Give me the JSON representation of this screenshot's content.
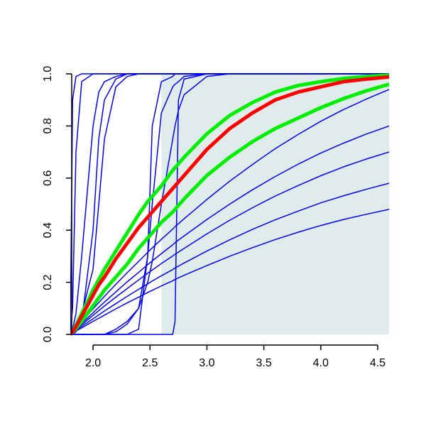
{
  "chart_data": {
    "type": "line",
    "xlim": [
      1.8,
      4.6
    ],
    "ylim": [
      0,
      1
    ],
    "xticks": [
      {
        "value": 2,
        "label": "2.0"
      },
      {
        "value": 2.5,
        "label": "2.5"
      },
      {
        "value": 3,
        "label": "3.0"
      },
      {
        "value": 3.5,
        "label": "3.5"
      },
      {
        "value": 4,
        "label": "4.0"
      },
      {
        "value": 4.5,
        "label": "4.5"
      }
    ],
    "yticks": [
      {
        "value": 0,
        "label": "0.0"
      },
      {
        "value": 0.2,
        "label": "0.2"
      },
      {
        "value": 0.4,
        "label": "0.4"
      },
      {
        "value": 0.6,
        "label": "0.6"
      },
      {
        "value": 0.8,
        "label": "0.8"
      },
      {
        "value": 1,
        "label": "1.0"
      }
    ],
    "shaded_region": {
      "xlim": [
        2.6,
        4.6
      ],
      "ylim": [
        0,
        1
      ],
      "color": "#e0ebeb"
    },
    "x": [
      1.8,
      1.82,
      1.85,
      1.9,
      2.0,
      2.05,
      2.1,
      2.2,
      2.3,
      2.4,
      2.48,
      2.52,
      2.6,
      2.7,
      2.72,
      2.75,
      2.8,
      3.0,
      3.2,
      3.4,
      3.6,
      3.8,
      4.0,
      4.2,
      4.4,
      4.6
    ],
    "series": [
      {
        "color": "#0000ff",
        "line_width": 1.5,
        "values": [
          0,
          0.9,
          0.99,
          1,
          1,
          1,
          1,
          1,
          1,
          1,
          1,
          1,
          1,
          1,
          1,
          1,
          1,
          1,
          1,
          1,
          1,
          1,
          1,
          1,
          1,
          1
        ]
      },
      {
        "color": "#0000ff",
        "line_width": 1.5,
        "values": [
          0,
          0.1,
          0.7,
          0.97,
          1,
          1,
          1,
          1,
          1,
          1,
          1,
          1,
          1,
          1,
          1,
          1,
          1,
          1,
          1,
          1,
          1,
          1,
          1,
          1,
          1,
          1
        ]
      },
      {
        "color": "#0000ff",
        "line_width": 1.5,
        "values": [
          0,
          0.02,
          0.08,
          0.3,
          0.8,
          0.93,
          0.97,
          0.99,
          1,
          1,
          1,
          1,
          1,
          1,
          1,
          1,
          1,
          1,
          1,
          1,
          1,
          1,
          1,
          1,
          1,
          1
        ]
      },
      {
        "color": "#0000ff",
        "line_width": 1.5,
        "values": [
          0,
          0,
          0.01,
          0.05,
          0.4,
          0.75,
          0.9,
          0.98,
          1,
          1,
          1,
          1,
          1,
          1,
          1,
          1,
          1,
          1,
          1,
          1,
          1,
          1,
          1,
          1,
          1,
          1
        ]
      },
      {
        "color": "#0000ff",
        "line_width": 1.5,
        "values": [
          0,
          0.01,
          0.03,
          0.08,
          0.25,
          0.5,
          0.75,
          0.95,
          0.99,
          1,
          1,
          1,
          1,
          1,
          1,
          1,
          1,
          1,
          1,
          1,
          1,
          1,
          1,
          1,
          1,
          1
        ]
      },
      {
        "color": "#0000ff",
        "line_width": 1.5,
        "values": [
          0,
          0,
          0,
          0,
          0,
          0,
          0,
          0,
          0,
          0.02,
          0.3,
          0.8,
          0.97,
          0.99,
          1,
          1,
          1,
          1,
          1,
          1,
          1,
          1,
          1,
          1,
          1,
          1
        ]
      },
      {
        "color": "#0000ff",
        "line_width": 1.5,
        "values": [
          0,
          0,
          0,
          0,
          0,
          0,
          0,
          0,
          0,
          0,
          0,
          0,
          0,
          0,
          0.05,
          0.9,
          0.98,
          1,
          1,
          1,
          1,
          1,
          1,
          1,
          1,
          1
        ]
      },
      {
        "color": "#0000ff",
        "line_width": 1.5,
        "values": [
          0,
          0,
          0,
          0,
          0,
          0,
          0,
          0.01,
          0.04,
          0.1,
          0.3,
          0.5,
          0.85,
          0.95,
          0.96,
          0.97,
          0.99,
          1,
          1,
          1,
          1,
          1,
          1,
          1,
          1,
          1
        ]
      },
      {
        "color": "#0000ff",
        "line_width": 1.5,
        "values": [
          0,
          0,
          0,
          0,
          0,
          0,
          0,
          0.02,
          0.05,
          0.1,
          0.2,
          0.28,
          0.5,
          0.75,
          0.8,
          0.86,
          0.92,
          0.99,
          1,
          1,
          1,
          1,
          1,
          1,
          1,
          1
        ]
      },
      {
        "color": "#0000ff",
        "line_width": 1.5,
        "values": [
          0,
          0.005,
          0.013,
          0.025,
          0.05,
          0.062,
          0.074,
          0.098,
          0.121,
          0.143,
          0.161,
          0.169,
          0.186,
          0.206,
          0.211,
          0.217,
          0.227,
          0.264,
          0.3,
          0.333,
          0.364,
          0.392,
          0.418,
          0.441,
          0.461,
          0.48
        ]
      },
      {
        "color": "#0000ff",
        "line_width": 1.5,
        "values": [
          0,
          0.006,
          0.016,
          0.031,
          0.06,
          0.075,
          0.09,
          0.118,
          0.146,
          0.173,
          0.194,
          0.205,
          0.225,
          0.249,
          0.255,
          0.262,
          0.274,
          0.32,
          0.363,
          0.403,
          0.44,
          0.473,
          0.505,
          0.532,
          0.557,
          0.58
        ]
      },
      {
        "color": "#0000ff",
        "line_width": 1.5,
        "values": [
          0,
          0.007,
          0.019,
          0.037,
          0.073,
          0.091,
          0.109,
          0.143,
          0.176,
          0.209,
          0.235,
          0.247,
          0.272,
          0.301,
          0.308,
          0.316,
          0.33,
          0.386,
          0.438,
          0.486,
          0.531,
          0.571,
          0.609,
          0.643,
          0.673,
          0.7
        ]
      },
      {
        "color": "#0000ff",
        "line_width": 1.5,
        "values": [
          0,
          0.008,
          0.022,
          0.042,
          0.083,
          0.104,
          0.124,
          0.163,
          0.202,
          0.238,
          0.268,
          0.282,
          0.31,
          0.344,
          0.352,
          0.362,
          0.378,
          0.441,
          0.5,
          0.555,
          0.606,
          0.653,
          0.696,
          0.734,
          0.769,
          0.8
        ]
      },
      {
        "color": "#0000ff",
        "line_width": 1.5,
        "values": [
          0,
          0.009,
          0.025,
          0.05,
          0.098,
          0.122,
          0.146,
          0.192,
          0.237,
          0.28,
          0.315,
          0.332,
          0.365,
          0.404,
          0.414,
          0.425,
          0.444,
          0.518,
          0.588,
          0.652,
          0.713,
          0.767,
          0.818,
          0.863,
          0.903,
          0.94
        ]
      },
      {
        "color": "#00ee00",
        "line_width": 5,
        "values": [
          0,
          0.012,
          0.035,
          0.08,
          0.17,
          0.21,
          0.25,
          0.32,
          0.39,
          0.46,
          0.51,
          0.53,
          0.57,
          0.63,
          0.64,
          0.655,
          0.68,
          0.77,
          0.84,
          0.89,
          0.93,
          0.955,
          0.97,
          0.982,
          0.99,
          0.995
        ]
      },
      {
        "color": "#00ee00",
        "line_width": 5,
        "values": [
          0,
          0.008,
          0.022,
          0.05,
          0.11,
          0.14,
          0.17,
          0.22,
          0.27,
          0.33,
          0.37,
          0.39,
          0.43,
          0.47,
          0.48,
          0.495,
          0.52,
          0.61,
          0.68,
          0.74,
          0.79,
          0.83,
          0.87,
          0.905,
          0.935,
          0.96
        ]
      },
      {
        "color": "#ff0000",
        "line_width": 5,
        "values": [
          0,
          0.01,
          0.03,
          0.07,
          0.15,
          0.19,
          0.22,
          0.29,
          0.35,
          0.41,
          0.45,
          0.47,
          0.51,
          0.56,
          0.57,
          0.585,
          0.61,
          0.71,
          0.79,
          0.85,
          0.9,
          0.93,
          0.95,
          0.97,
          0.98,
          0.988
        ]
      }
    ]
  }
}
